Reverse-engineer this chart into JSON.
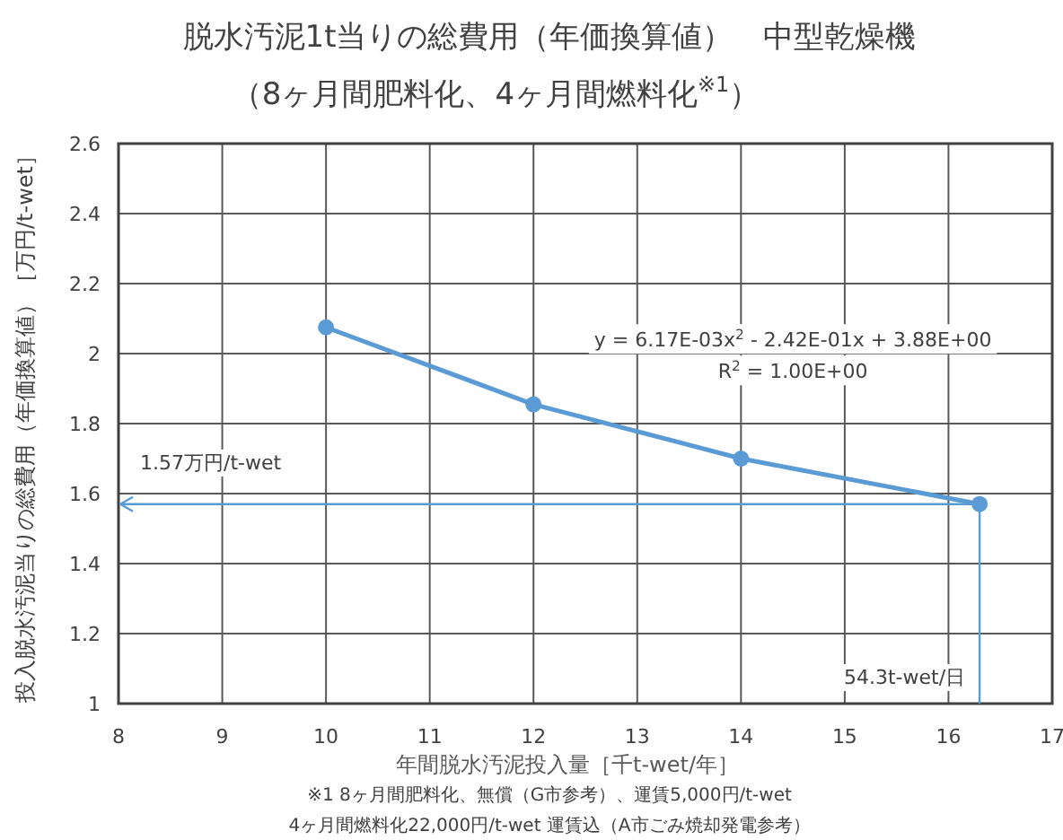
{
  "chart_data": {
    "type": "line",
    "title": "脱水汚泥1t当りの総費用（年価換算値）　中型乾燥機",
    "subtitle": "（8ヶ月間肥料化、4ヶ月間燃料化$^{※1}$）",
    "xlabel": "年間脱水汚泥投入量［千t-wet/年］",
    "ylabel": "投入脱水汚泥当りの総費用（年価換算値）［万円/t-wet］",
    "x": [
      10,
      12,
      14,
      16.3
    ],
    "series": [
      {
        "color": "#5b9bd5",
        "values": [
          2.075,
          1.855,
          1.7,
          1.57
        ]
      }
    ],
    "xlim": [
      8,
      17
    ],
    "xticks": [
      8,
      9,
      10,
      11,
      12,
      13,
      14,
      15,
      16,
      17
    ],
    "ylim": [
      1,
      2.6
    ],
    "yticks": [
      1,
      1.2,
      1.4,
      1.6,
      1.8,
      2,
      2.2,
      2.4,
      2.6
    ],
    "grid": true,
    "marker": "circle",
    "line_style": "solid",
    "ref_lines": [
      {
        "axis": "y",
        "value": 1.57,
        "label": "1.57万円/t-wet",
        "color": "#5b9bd5"
      },
      {
        "axis": "x",
        "value": 16.3,
        "label": "54.3t-wet/日",
        "color": "#5b9bd5"
      }
    ],
    "annotations": [
      "y = 6.17E-03x$^{2}$ - 2.42E-01x + 3.88E+00",
      "R$^{2}$ = 1.00E+00",
      "※1  8ヶ月間肥料化、無償（G市参考）、運賃5,000円/t-wet",
      "4ヶ月間燃料化22,000円/t-wet 運賃込（A市ごみ焼却発電参考）"
    ]
  }
}
